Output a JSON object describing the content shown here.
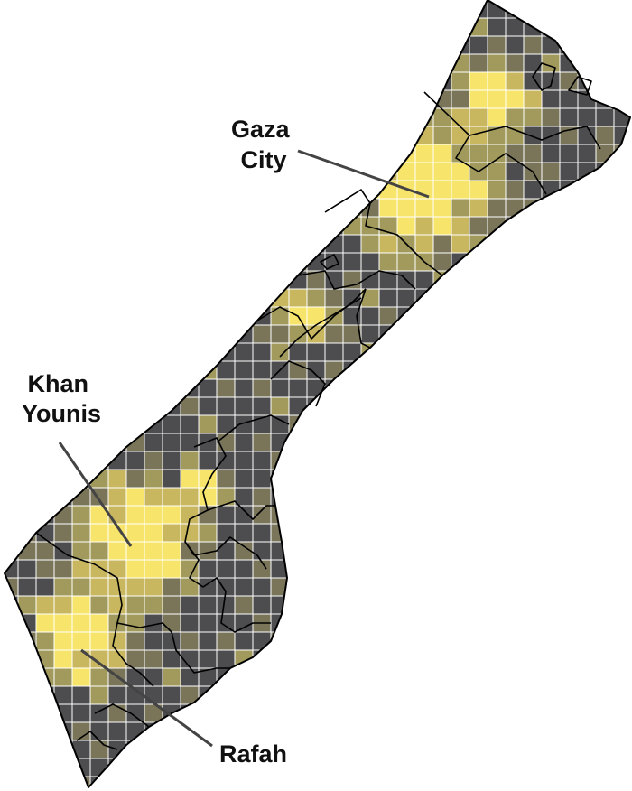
{
  "map": {
    "labels": {
      "gaza_city": [
        "Gaza",
        "City"
      ],
      "khan_younis": [
        "Khan",
        "Younis"
      ],
      "rafah": [
        "Rafah"
      ]
    },
    "colors": {
      "levels": [
        "#f7e46a",
        "#c9b760",
        "#a19a5c",
        "#7a7558",
        "#4d4d4f"
      ],
      "background": "#ffffff",
      "border": "#000000",
      "label": "#111111",
      "leader": "#444444"
    }
  }
}
